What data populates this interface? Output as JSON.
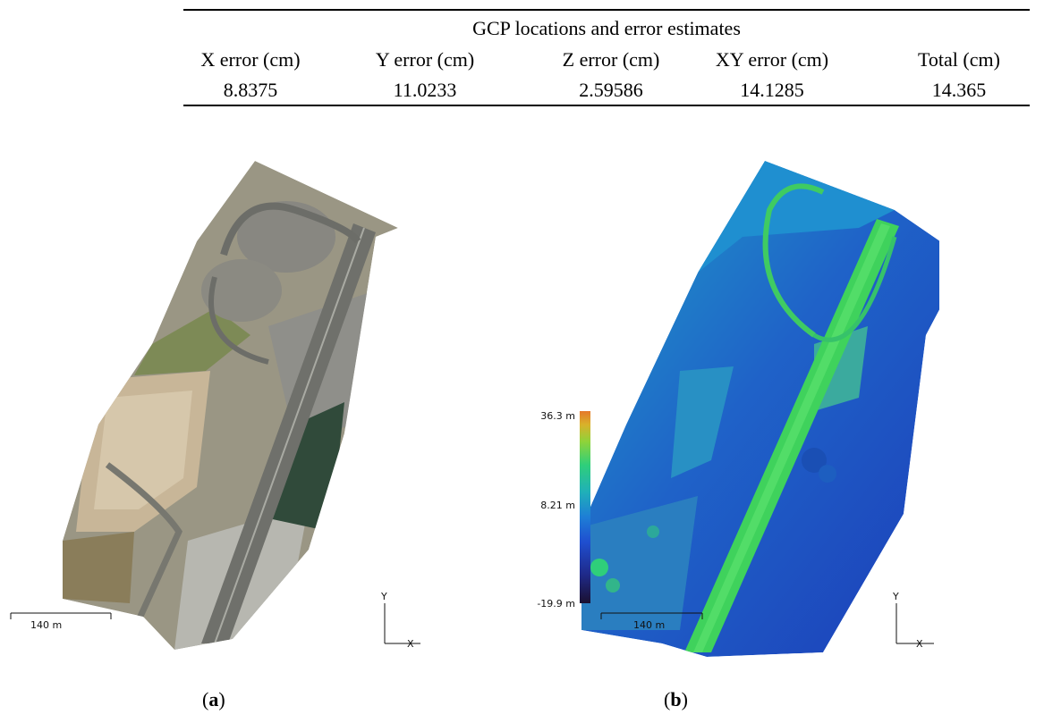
{
  "table": {
    "caption": "GCP locations and error estimates",
    "headers": [
      "X error (cm)",
      "Y error (cm)",
      "Z error (cm)",
      "XY error (cm)",
      "Total (cm)"
    ],
    "values": [
      "8.8375",
      "11.0233",
      "2.59586",
      "14.1285",
      "14.365"
    ]
  },
  "panel_a": {
    "scale_label": "140 m",
    "axis_y": "Y",
    "axis_x": "X",
    "sub_open": "(",
    "sub_letter": "a",
    "sub_close": ")"
  },
  "panel_b": {
    "legend_max": "36.3 m",
    "legend_mid": "8.21 m",
    "legend_min": "-19.9 m",
    "scale_label": "140 m",
    "axis_y": "Y",
    "axis_x": "X",
    "sub_open": "(",
    "sub_letter": "b",
    "sub_close": ")"
  },
  "colors": {
    "colormap": [
      "#1a1030",
      "#1f2a8a",
      "#1f4fd0",
      "#1e7fd6",
      "#20b0b8",
      "#2fcf7a",
      "#8ed33a",
      "#d9b12a",
      "#e5782a"
    ],
    "dem_road": "#3fd25c",
    "dem_ground": "#1f62c8"
  }
}
